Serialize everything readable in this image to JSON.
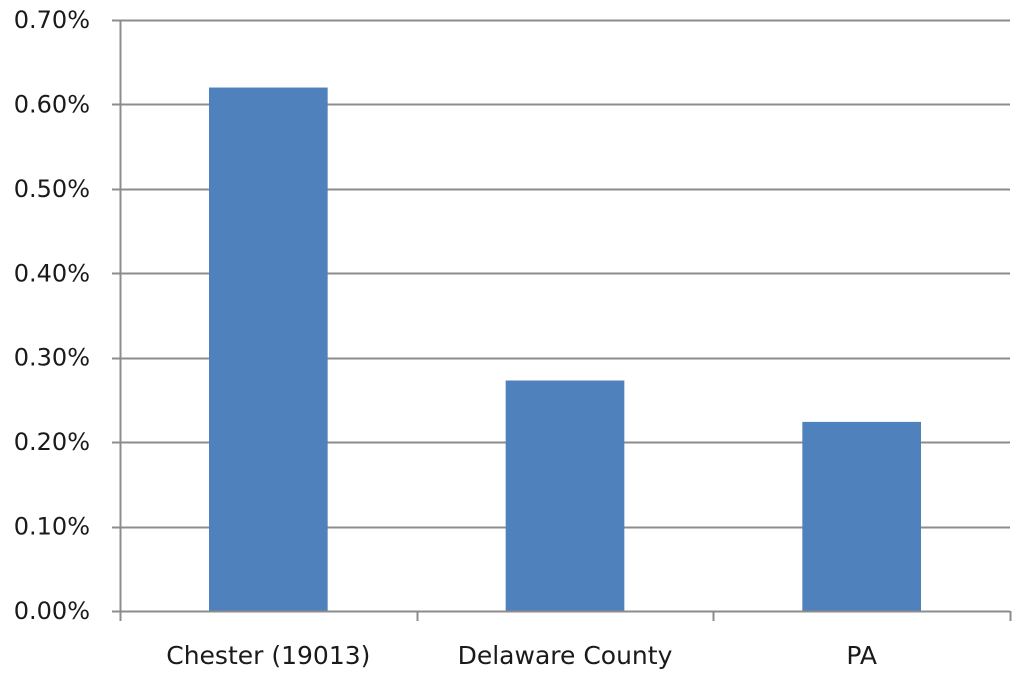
{
  "chart_data": {
    "type": "bar",
    "title": "",
    "xlabel": "",
    "ylabel": "",
    "categories": [
      "Chester (19013)",
      "Delaware County",
      "PA"
    ],
    "values": [
      0.62,
      0.273,
      0.224
    ],
    "ylim": [
      0,
      0.7
    ],
    "y_ticks": [
      "0.00%",
      "0.10%",
      "0.20%",
      "0.30%",
      "0.40%",
      "0.50%",
      "0.60%",
      "0.70%"
    ],
    "y_tick_values": [
      0,
      0.1,
      0.2,
      0.3,
      0.4,
      0.5,
      0.6,
      0.7
    ],
    "grid": true,
    "legend": "none",
    "colors": {
      "bar": "#4f81bd",
      "grid": "#8c8c8c",
      "axis": "#8c8c8c"
    }
  }
}
